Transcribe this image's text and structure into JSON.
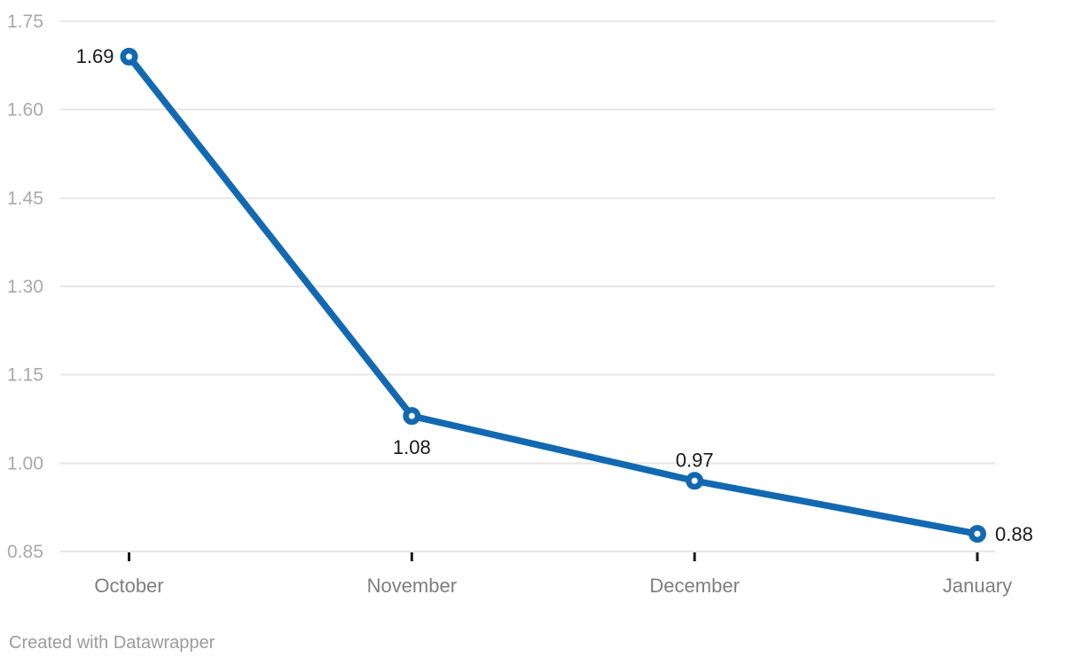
{
  "chart_data": {
    "type": "line",
    "categories": [
      "October",
      "November",
      "December",
      "January"
    ],
    "values": [
      1.69,
      1.08,
      0.97,
      0.88
    ],
    "data_labels": [
      "1.69",
      "1.08",
      "0.97",
      "0.88"
    ],
    "label_positions": [
      "left",
      "below",
      "above",
      "right"
    ],
    "y_tick_labels": [
      "0.85",
      "1.00",
      "1.15",
      "1.30",
      "1.45",
      "1.60",
      "1.75"
    ],
    "ylim": [
      0.85,
      1.75
    ],
    "grid": true,
    "legend": "none",
    "title": "",
    "xlabel": "",
    "ylabel": "",
    "marker_style": "open-circle"
  },
  "footer": {
    "credit": "Created with Datawrapper"
  },
  "colors": {
    "background": "#ffffff",
    "gridline": "#e6e6e6",
    "y_tick_text": "#a9a9a9",
    "x_tick_text": "#7f7f7f",
    "data_label_text": "#1a1a1a",
    "axis_tick": "#1a1a1a",
    "line": "#1269b1",
    "marker_fill": "#ffffff",
    "credit_text": "#9b9b9b"
  }
}
